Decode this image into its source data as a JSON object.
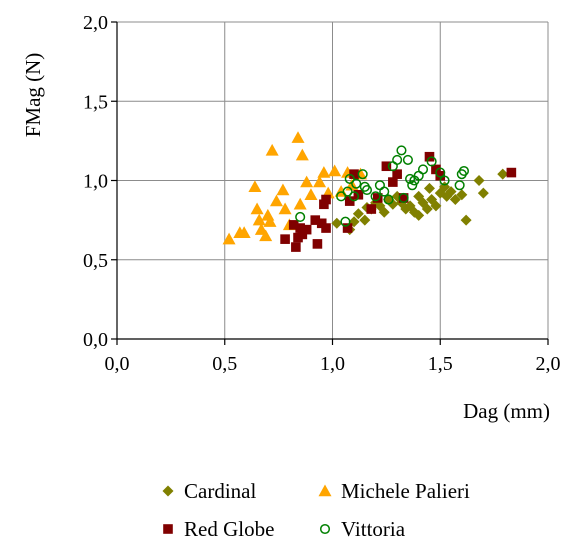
{
  "chart_data": {
    "type": "scatter",
    "title": "",
    "xlabel": "Dag (mm)",
    "ylabel": "FMag (N)",
    "xlim": [
      0,
      2
    ],
    "ylim": [
      0,
      2
    ],
    "xticks": [
      "0,0",
      "0,5",
      "1,0",
      "1,5",
      "2,0"
    ],
    "yticks": [
      "0,0",
      "0,5",
      "1,0",
      "1,5",
      "2,0"
    ],
    "grid": true,
    "legend_position": "bottom",
    "series": [
      {
        "name": "Cardinal",
        "marker": "diamond",
        "color": "#808000",
        "points": [
          [
            1.08,
            0.69
          ],
          [
            1.1,
            0.74
          ],
          [
            1.12,
            0.79
          ],
          [
            1.15,
            0.75
          ],
          [
            1.18,
            0.82
          ],
          [
            1.2,
            0.86
          ],
          [
            1.22,
            0.84
          ],
          [
            1.24,
            0.8
          ],
          [
            1.26,
            0.88
          ],
          [
            1.28,
            0.85
          ],
          [
            1.3,
            0.9
          ],
          [
            1.32,
            0.86
          ],
          [
            1.34,
            0.82
          ],
          [
            1.36,
            0.84
          ],
          [
            1.38,
            0.8
          ],
          [
            1.4,
            0.78
          ],
          [
            1.4,
            0.9
          ],
          [
            1.42,
            0.86
          ],
          [
            1.44,
            0.82
          ],
          [
            1.45,
            0.95
          ],
          [
            1.46,
            0.88
          ],
          [
            1.48,
            0.84
          ],
          [
            1.5,
            0.92
          ],
          [
            1.52,
            0.96
          ],
          [
            1.53,
            0.9
          ],
          [
            1.55,
            0.93
          ],
          [
            1.57,
            0.88
          ],
          [
            1.6,
            0.91
          ],
          [
            1.62,
            0.75
          ],
          [
            1.68,
            1.0
          ],
          [
            1.7,
            0.92
          ],
          [
            1.79,
            1.04
          ],
          [
            1.02,
            0.73
          ],
          [
            1.16,
            0.83
          ]
        ]
      },
      {
        "name": "Michele Palieri",
        "marker": "triangle",
        "color": "#FFA500",
        "points": [
          [
            0.52,
            0.63
          ],
          [
            0.57,
            0.67
          ],
          [
            0.59,
            0.67
          ],
          [
            0.64,
            0.96
          ],
          [
            0.65,
            0.82
          ],
          [
            0.66,
            0.75
          ],
          [
            0.67,
            0.69
          ],
          [
            0.69,
            0.65
          ],
          [
            0.7,
            0.78
          ],
          [
            0.71,
            0.74
          ],
          [
            0.72,
            1.19
          ],
          [
            0.74,
            0.87
          ],
          [
            0.77,
            0.94
          ],
          [
            0.78,
            0.82
          ],
          [
            0.8,
            0.72
          ],
          [
            0.84,
            1.27
          ],
          [
            0.85,
            0.85
          ],
          [
            0.86,
            1.16
          ],
          [
            0.88,
            0.99
          ],
          [
            0.9,
            0.91
          ],
          [
            0.94,
            0.99
          ],
          [
            0.96,
            1.05
          ],
          [
            1.01,
            1.06
          ],
          [
            1.04,
            0.93
          ],
          [
            1.07,
            1.05
          ],
          [
            1.09,
            0.97
          ],
          [
            1.13,
            1.04
          ],
          [
            0.98,
            0.92
          ]
        ]
      },
      {
        "name": "Red Globe",
        "marker": "square",
        "color": "#800000",
        "points": [
          [
            0.78,
            0.63
          ],
          [
            0.82,
            0.72
          ],
          [
            0.83,
            0.58
          ],
          [
            0.84,
            0.64
          ],
          [
            0.85,
            0.7
          ],
          [
            0.86,
            0.66
          ],
          [
            0.88,
            0.69
          ],
          [
            0.92,
            0.75
          ],
          [
            0.93,
            0.6
          ],
          [
            0.95,
            0.73
          ],
          [
            0.96,
            0.85
          ],
          [
            0.97,
            0.7
          ],
          [
            0.97,
            0.88
          ],
          [
            1.07,
            0.7
          ],
          [
            1.08,
            0.87
          ],
          [
            1.1,
            1.04
          ],
          [
            1.12,
            0.91
          ],
          [
            1.18,
            0.82
          ],
          [
            1.21,
            0.89
          ],
          [
            1.25,
            1.09
          ],
          [
            1.28,
            0.99
          ],
          [
            1.3,
            1.04
          ],
          [
            1.33,
            0.89
          ],
          [
            1.45,
            1.15
          ],
          [
            1.48,
            1.07
          ],
          [
            1.5,
            1.03
          ],
          [
            1.83,
            1.05
          ]
        ]
      },
      {
        "name": "Vittoria",
        "marker": "circle-open",
        "color": "#008000",
        "points": [
          [
            0.85,
            0.77
          ],
          [
            1.04,
            0.9
          ],
          [
            1.06,
            0.74
          ],
          [
            1.07,
            0.93
          ],
          [
            1.08,
            1.01
          ],
          [
            1.1,
            0.9
          ],
          [
            1.14,
            1.04
          ],
          [
            1.15,
            0.96
          ],
          [
            1.16,
            0.94
          ],
          [
            1.2,
            0.9
          ],
          [
            1.22,
            0.97
          ],
          [
            1.24,
            0.93
          ],
          [
            1.26,
            0.88
          ],
          [
            1.28,
            1.09
          ],
          [
            1.3,
            1.13
          ],
          [
            1.32,
            1.19
          ],
          [
            1.33,
            0.89
          ],
          [
            1.35,
            1.13
          ],
          [
            1.36,
            1.01
          ],
          [
            1.37,
            0.97
          ],
          [
            1.38,
            1.0
          ],
          [
            1.4,
            1.03
          ],
          [
            1.46,
            1.12
          ],
          [
            1.5,
            1.05
          ],
          [
            1.52,
            1.0
          ],
          [
            1.59,
            0.97
          ],
          [
            1.6,
            1.04
          ],
          [
            1.61,
            1.06
          ],
          [
            1.11,
            0.98
          ],
          [
            1.42,
            1.07
          ]
        ]
      }
    ]
  }
}
